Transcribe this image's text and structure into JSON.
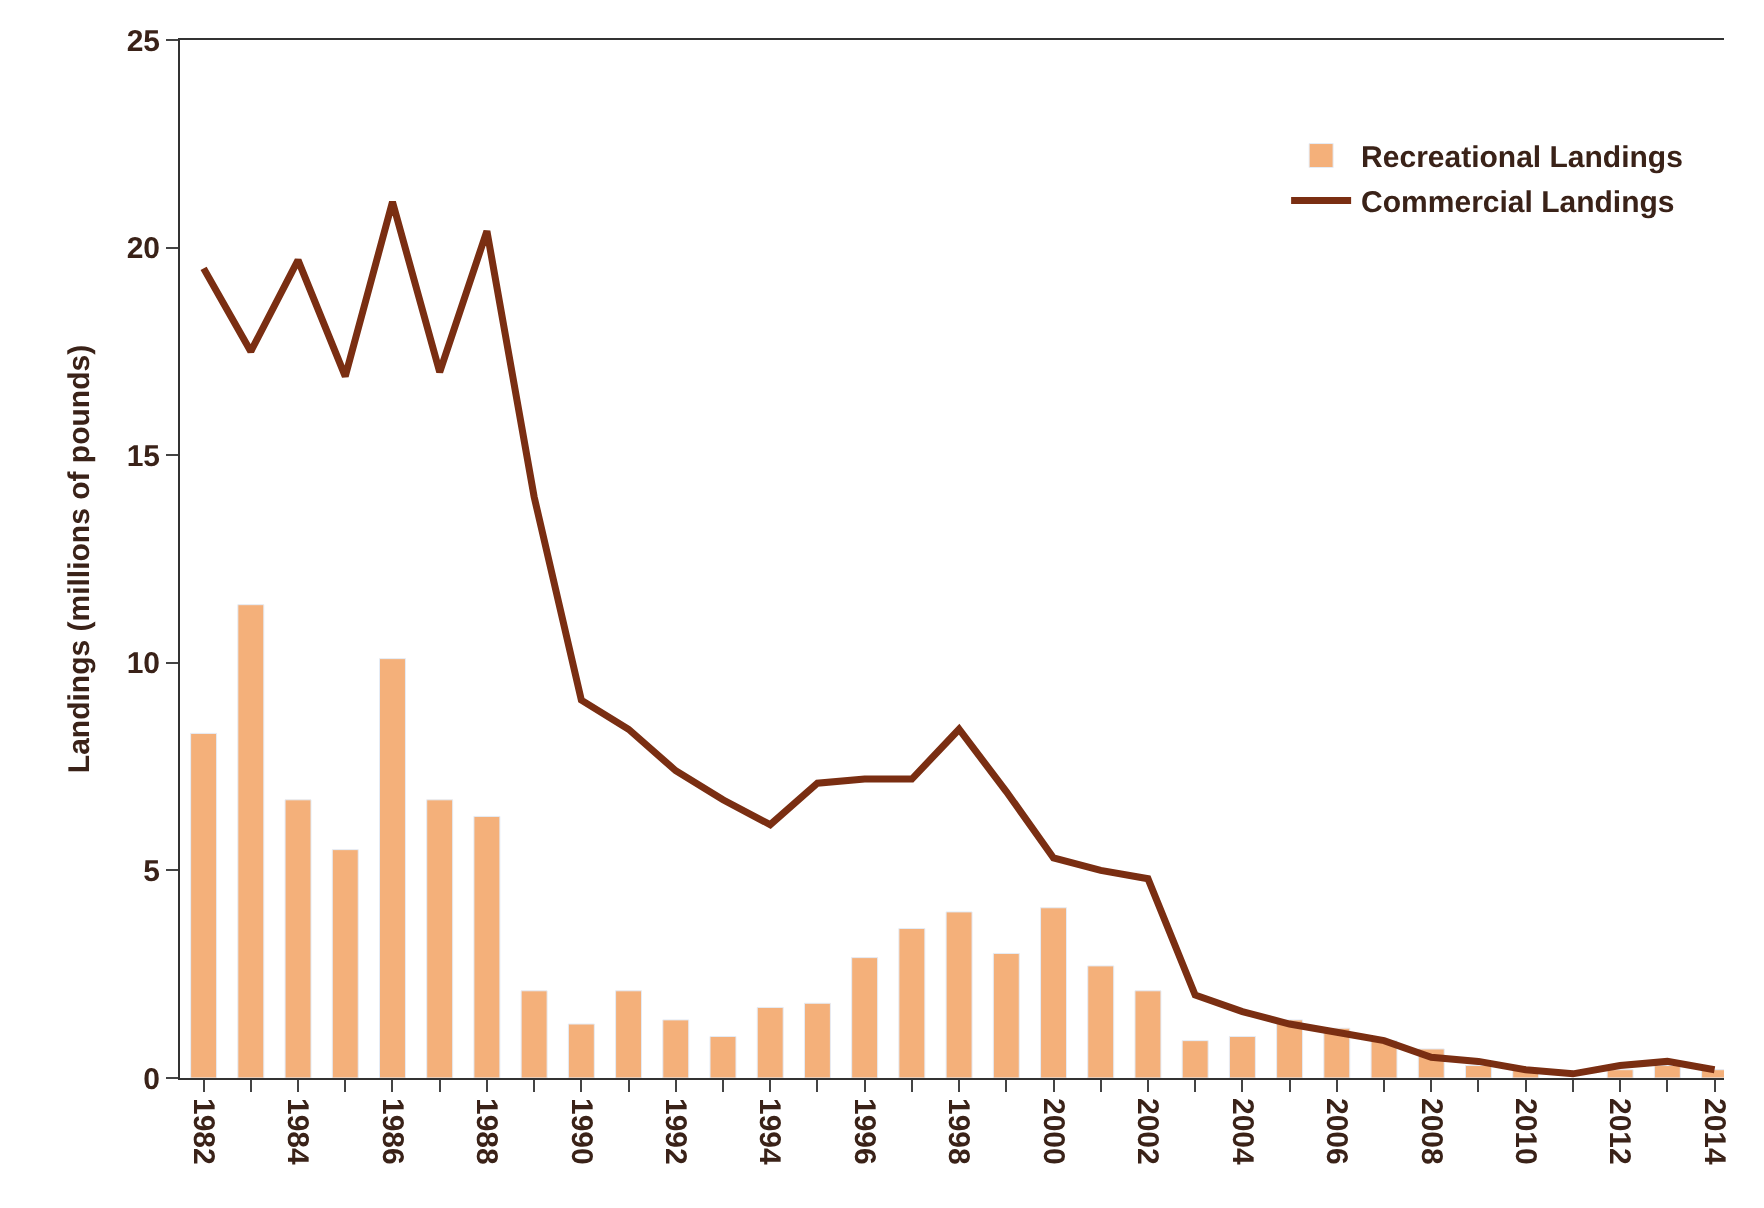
{
  "chart_data": {
    "type": "bar",
    "ylabel": "Landings (millions of pounds)",
    "x": [
      1982,
      1983,
      1984,
      1985,
      1986,
      1987,
      1988,
      1989,
      1990,
      1991,
      1992,
      1993,
      1994,
      1995,
      1996,
      1997,
      1998,
      1999,
      2000,
      2001,
      2002,
      2003,
      2004,
      2005,
      2006,
      2007,
      2008,
      2009,
      2010,
      2011,
      2012,
      2013,
      2014
    ],
    "series": [
      {
        "name": "Recreational Landings",
        "color": "#f4b07a",
        "values": [
          8.3,
          11.4,
          6.7,
          5.5,
          10.1,
          6.7,
          6.3,
          2.1,
          1.3,
          2.1,
          1.4,
          1.0,
          1.7,
          1.8,
          2.9,
          3.6,
          4.0,
          3.0,
          4.1,
          2.7,
          2.1,
          0.9,
          1.0,
          1.4,
          1.2,
          0.9,
          0.7,
          0.3,
          0.2,
          null,
          0.2,
          0.3,
          0.2
        ]
      },
      {
        "name": "Commercial Landings",
        "type": "line",
        "color": "#7a2e12",
        "values": [
          19.5,
          17.5,
          19.7,
          16.9,
          21.1,
          17.0,
          20.4,
          14.0,
          9.1,
          8.4,
          7.4,
          6.7,
          6.1,
          7.1,
          7.2,
          7.2,
          8.4,
          6.9,
          5.3,
          5.0,
          4.8,
          2.0,
          1.6,
          1.3,
          1.1,
          0.9,
          0.5,
          0.4,
          0.2,
          0.1,
          0.3,
          0.4,
          0.2
        ]
      }
    ],
    "xlim": [
      1981.5,
      2014.2
    ],
    "xticks": [
      1982,
      {
        "value": 1983,
        "label": null
      },
      1984,
      {
        "value": 1985,
        "label": null
      },
      1986,
      {
        "value": 1987,
        "label": null
      },
      1988,
      {
        "value": 1989,
        "label": null
      },
      1990,
      {
        "value": 1991,
        "label": null
      },
      1992,
      {
        "value": 1993,
        "label": null
      },
      1994,
      {
        "value": 1995,
        "label": null
      },
      1996,
      {
        "value": 1997,
        "label": null
      },
      1998,
      {
        "value": 1999,
        "label": null
      },
      2000,
      {
        "value": 2001,
        "label": null
      },
      2002,
      {
        "value": 2003,
        "label": null
      },
      2004,
      {
        "value": 2005,
        "label": null
      },
      2006,
      {
        "value": 2007,
        "label": null
      },
      2008,
      {
        "value": 2009,
        "label": null
      },
      2010,
      {
        "value": 2011,
        "label": null
      },
      2012,
      {
        "value": 2013,
        "label": null
      },
      2014
    ],
    "ylim": [
      0,
      25
    ],
    "yticks": [
      0,
      5,
      10,
      15,
      20,
      25
    ],
    "legend": "top right",
    "marker": "none",
    "line_style": "solid"
  }
}
